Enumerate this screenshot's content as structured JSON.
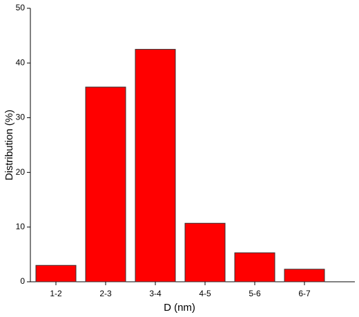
{
  "chart_data": {
    "type": "bar",
    "x_label": "D (nm)",
    "y_label": "Distribution (%)",
    "categories": [
      "1-2",
      "2-3",
      "3-4",
      "4-5",
      "5-6",
      "6-7"
    ],
    "values": [
      3.0,
      35.6,
      42.5,
      10.7,
      5.3,
      2.3
    ],
    "color": "#ff0000",
    "ylim": [
      0,
      50
    ],
    "yticks": [
      0,
      10,
      20,
      30,
      40,
      50
    ],
    "grid": false
  }
}
